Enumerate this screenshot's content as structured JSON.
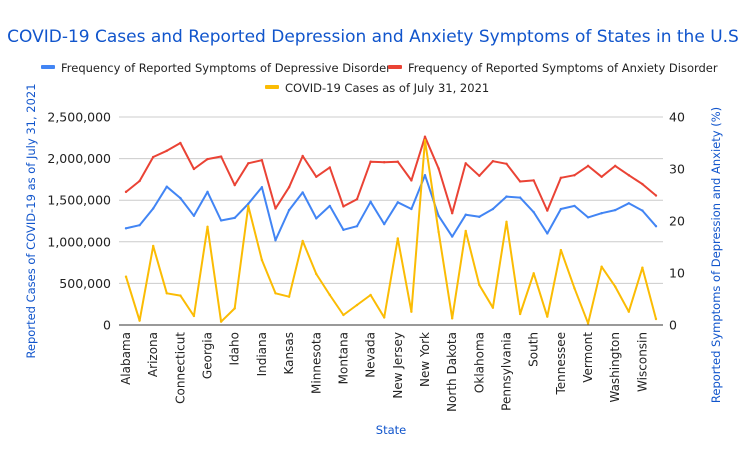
{
  "chart_data": {
    "type": "line",
    "title": "COVID-19 Cases and Reported Depression and Anxiety Symptoms of States in the U.S",
    "xlabel": "State",
    "ylabel_left": "Reported Cases of COVID-19 as of July 31, 2021",
    "ylabel_right": "Reported Symptoms of Depression and Anxiety (%)",
    "legend_position": "top-center",
    "grid": true,
    "ylim_left": [
      0,
      2500000
    ],
    "ylim_right": [
      0,
      40
    ],
    "left_ticks": [
      "0",
      "500,000",
      "1,000,000",
      "1,500,000",
      "2,000,000",
      "2,500,000"
    ],
    "right_ticks": [
      "0",
      "10",
      "20",
      "30",
      "40"
    ],
    "categories": [
      "Alabama",
      "",
      "Arizona",
      "",
      "Connecticut",
      "",
      "Georgia",
      "",
      "Idaho",
      "",
      "Indiana",
      "",
      "Kansas",
      "",
      "Minnesota",
      "",
      "Montana",
      "",
      "Nevada",
      "",
      "New Jersey",
      "",
      "New York",
      "",
      "North Dakota",
      "",
      "Oklahoma",
      "",
      "Pennsylvania",
      "",
      "South",
      "",
      "Tennessee",
      "",
      "Vermont",
      "",
      "Washington",
      "",
      "Wisconsin",
      ""
    ],
    "series": [
      {
        "name": "Frequency of Reported Symptoms of Depressive Disorder",
        "axis": "right",
        "color": "#4285f4",
        "values": [
          18.6,
          19.2,
          22.4,
          26.6,
          24.4,
          21.0,
          25.6,
          20.1,
          20.6,
          23.3,
          26.5,
          16.3,
          22.1,
          25.5,
          20.5,
          22.9,
          18.3,
          19.0,
          23.7,
          19.4,
          23.6,
          22.3,
          28.8,
          21.0,
          17.0,
          21.2,
          20.8,
          22.3,
          24.7,
          24.5,
          21.7,
          17.6,
          22.3,
          22.9,
          20.7,
          21.5,
          22.1,
          23.4,
          22.0,
          19.0
        ]
      },
      {
        "name": "Frequency of Reported Symptoms of Anxiety Disorder",
        "axis": "right",
        "color": "#ea4335",
        "values": [
          25.6,
          27.7,
          32.3,
          33.5,
          35.0,
          30.0,
          31.9,
          32.4,
          26.9,
          31.1,
          31.7,
          22.4,
          26.5,
          32.5,
          28.5,
          30.3,
          22.8,
          24.2,
          31.4,
          31.3,
          31.4,
          27.8,
          36.2,
          30.1,
          21.5,
          31.1,
          28.7,
          31.5,
          31.0,
          27.6,
          27.8,
          22.0,
          28.3,
          28.8,
          30.6,
          28.5,
          30.6,
          28.8,
          27.1,
          24.9
        ]
      },
      {
        "name": "COVID-19 Cases as of July 31, 2021",
        "axis": "left",
        "color": "#fbbc04",
        "values": [
          580000,
          52000,
          950000,
          381000,
          353000,
          108000,
          1180000,
          40000,
          200000,
          1430000,
          781000,
          381000,
          340000,
          1010000,
          613000,
          361000,
          120000,
          240000,
          361000,
          90000,
          1040000,
          160000,
          2220000,
          1120000,
          80000,
          1130000,
          481000,
          208000,
          1240000,
          132000,
          621000,
          100000,
          901000,
          441000,
          20000,
          701000,
          461000,
          160000,
          689000,
          72000
        ]
      }
    ]
  }
}
